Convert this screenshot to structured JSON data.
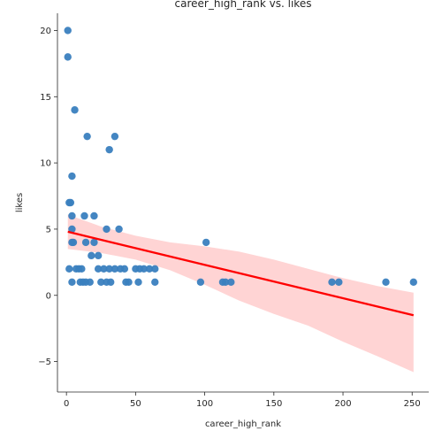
{
  "chart_data": {
    "type": "scatter",
    "title": "career_high_rank vs. likes",
    "xlabel": "career_high_rank",
    "ylabel": "likes",
    "xlim": [
      -6.5,
      262
    ],
    "ylim": [
      -7.3,
      21.3
    ],
    "xticks": [
      0,
      50,
      100,
      150,
      200,
      250
    ],
    "yticks": [
      -5,
      0,
      5,
      10,
      15,
      20
    ],
    "grid": false,
    "legend": "none",
    "colors": {
      "points": "#3a7fbf",
      "fit_line": "#ff0000",
      "confidence_band": "#ffcccc"
    },
    "points": [
      {
        "x": 1,
        "y": 20
      },
      {
        "x": 1,
        "y": 18
      },
      {
        "x": 6,
        "y": 14
      },
      {
        "x": 4,
        "y": 9
      },
      {
        "x": 15,
        "y": 12
      },
      {
        "x": 35,
        "y": 12
      },
      {
        "x": 31,
        "y": 11
      },
      {
        "x": 2,
        "y": 7
      },
      {
        "x": 3,
        "y": 7
      },
      {
        "x": 4,
        "y": 6
      },
      {
        "x": 13,
        "y": 6
      },
      {
        "x": 20,
        "y": 6
      },
      {
        "x": 4,
        "y": 5
      },
      {
        "x": 29,
        "y": 5
      },
      {
        "x": 38,
        "y": 5
      },
      {
        "x": 4,
        "y": 4
      },
      {
        "x": 5,
        "y": 4
      },
      {
        "x": 14,
        "y": 4
      },
      {
        "x": 20,
        "y": 4
      },
      {
        "x": 101,
        "y": 4
      },
      {
        "x": 18,
        "y": 3
      },
      {
        "x": 23,
        "y": 3
      },
      {
        "x": 2,
        "y": 2
      },
      {
        "x": 7,
        "y": 2
      },
      {
        "x": 9,
        "y": 2
      },
      {
        "x": 11,
        "y": 2
      },
      {
        "x": 23,
        "y": 2
      },
      {
        "x": 27,
        "y": 2
      },
      {
        "x": 31,
        "y": 2
      },
      {
        "x": 35,
        "y": 2
      },
      {
        "x": 39,
        "y": 2
      },
      {
        "x": 42,
        "y": 2
      },
      {
        "x": 50,
        "y": 2
      },
      {
        "x": 53,
        "y": 2
      },
      {
        "x": 56,
        "y": 2
      },
      {
        "x": 60,
        "y": 2
      },
      {
        "x": 64,
        "y": 2
      },
      {
        "x": 4,
        "y": 1
      },
      {
        "x": 10,
        "y": 1
      },
      {
        "x": 12,
        "y": 1
      },
      {
        "x": 14,
        "y": 1
      },
      {
        "x": 17,
        "y": 1
      },
      {
        "x": 25,
        "y": 1
      },
      {
        "x": 29,
        "y": 1
      },
      {
        "x": 32,
        "y": 1
      },
      {
        "x": 43,
        "y": 1
      },
      {
        "x": 45,
        "y": 1
      },
      {
        "x": 52,
        "y": 1
      },
      {
        "x": 64,
        "y": 1
      },
      {
        "x": 97,
        "y": 1
      },
      {
        "x": 113,
        "y": 1
      },
      {
        "x": 115,
        "y": 1
      },
      {
        "x": 119,
        "y": 1
      },
      {
        "x": 192,
        "y": 1
      },
      {
        "x": 197,
        "y": 1
      },
      {
        "x": 231,
        "y": 1
      },
      {
        "x": 251,
        "y": 1
      }
    ],
    "regression": {
      "line": [
        {
          "x": 1,
          "y": 4.8
        },
        {
          "x": 251,
          "y": -1.5
        }
      ],
      "band": [
        {
          "x": 1,
          "lo": 3.5,
          "hi": 6.1
        },
        {
          "x": 25,
          "lo": 3.2,
          "hi": 5.2
        },
        {
          "x": 50,
          "lo": 2.7,
          "hi": 4.5
        },
        {
          "x": 75,
          "lo": 1.9,
          "hi": 4.0
        },
        {
          "x": 100,
          "lo": 0.8,
          "hi": 3.7
        },
        {
          "x": 125,
          "lo": -0.4,
          "hi": 3.3
        },
        {
          "x": 150,
          "lo": -1.4,
          "hi": 2.7
        },
        {
          "x": 175,
          "lo": -2.3,
          "hi": 2.0
        },
        {
          "x": 200,
          "lo": -3.5,
          "hi": 1.3
        },
        {
          "x": 225,
          "lo": -4.6,
          "hi": 0.7
        },
        {
          "x": 251,
          "lo": -5.8,
          "hi": 0.2
        }
      ]
    }
  }
}
